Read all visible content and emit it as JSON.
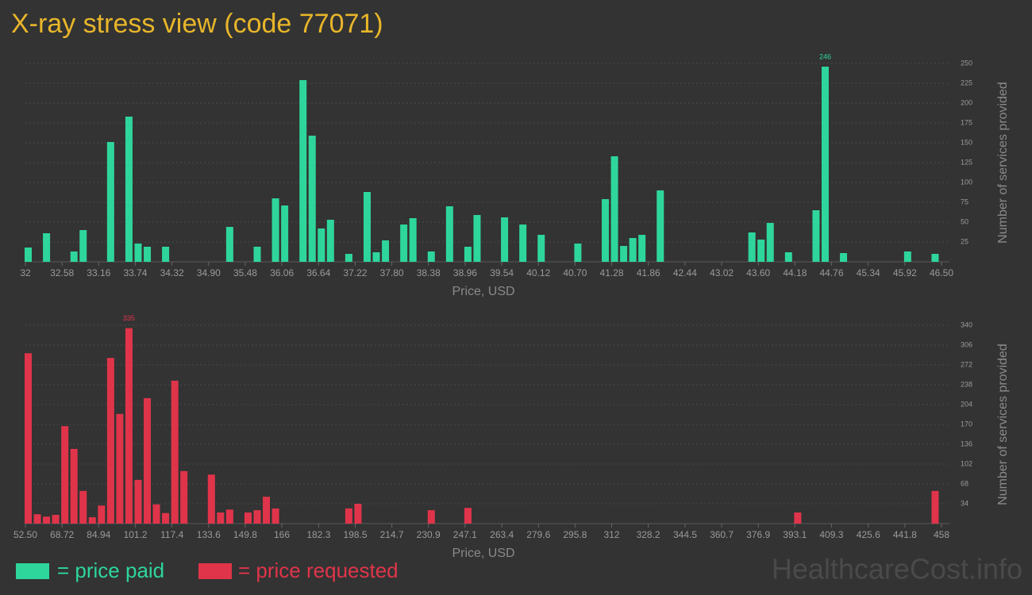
{
  "title": "X-ray stress view (code 77071)",
  "watermark": "HealthcareCost.info",
  "chart_data": [
    {
      "type": "bar",
      "x_label": "Price, USD",
      "y_label": "Number of services provided",
      "xlim": [
        32,
        46.5
      ],
      "xticks": [
        32,
        32.58,
        33.16,
        33.74,
        34.32,
        {
          "value": 34.9,
          "label": "34.90"
        },
        35.48,
        36.06,
        36.64,
        37.22,
        {
          "value": 37.8,
          "label": "37.80"
        },
        38.38,
        38.96,
        39.54,
        40.12,
        {
          "value": 40.7,
          "label": "40.70"
        },
        41.28,
        41.86,
        42.44,
        43.02,
        {
          "value": 43.6,
          "label": "43.60"
        },
        44.18,
        44.76,
        45.34,
        45.92,
        {
          "value": 46.5,
          "label": "46.50"
        }
      ],
      "ylim": [
        0,
        250
      ],
      "yticks": [
        25,
        50,
        75,
        100,
        125,
        150,
        175,
        200,
        225,
        250
      ],
      "series": [
        {
          "name": "= price paid",
          "color": "#2ed69c",
          "x": [
            32,
            32.29,
            32.725,
            32.87,
            33.305,
            33.595,
            33.74,
            33.885,
            34.175,
            35.19,
            35.625,
            35.915,
            36.06,
            36.35,
            36.495,
            36.64,
            36.785,
            37.075,
            37.365,
            37.51,
            37.655,
            37.945,
            38.09,
            38.38,
            38.67,
            38.96,
            39.105,
            39.54,
            39.83,
            40.12,
            40.7,
            41.135,
            41.28,
            41.425,
            41.57,
            41.715,
            42.005,
            43.455,
            43.6,
            43.745,
            44.035,
            44.47,
            44.615,
            44.905,
            45.92,
            46.355
          ],
          "values": [
            18,
            36,
            13,
            40,
            151,
            183,
            23,
            19,
            19,
            44,
            19,
            80,
            71,
            229,
            159,
            42,
            53,
            10,
            88,
            12,
            27,
            47,
            55,
            13,
            70,
            19,
            59,
            56,
            47,
            34,
            23,
            79,
            133,
            20,
            30,
            34,
            90,
            37,
            28,
            49,
            12,
            65,
            246,
            11,
            13,
            10
          ]
        }
      ]
    },
    {
      "type": "bar",
      "x_label": "Price, USD",
      "y_label": "Number of services provided",
      "xlim": [
        52.5,
        458
      ],
      "xticks": [
        {
          "value": 52.5,
          "label": "52.50"
        },
        68.72,
        84.94,
        101.2,
        117.4,
        133.6,
        149.8,
        166,
        182.3,
        198.5,
        214.7,
        230.9,
        247.1,
        263.4,
        279.6,
        295.8,
        312,
        328.2,
        344.5,
        360.7,
        376.9,
        393.1,
        409.3,
        425.6,
        441.8,
        458
      ],
      "ylim": [
        0,
        340
      ],
      "yticks": [
        34,
        68,
        102,
        136,
        170,
        204,
        238,
        272,
        306,
        340
      ],
      "series": [
        {
          "name": "= price requested",
          "color": "#e0344a",
          "x": [
            52.5,
            56.555,
            60.61,
            64.665,
            68.72,
            72.775,
            76.83,
            80.885,
            84.94,
            88.995,
            93.05,
            97.105,
            101.16,
            105.215,
            109.27,
            113.325,
            117.38,
            121.435,
            133.6,
            137.655,
            141.71,
            149.82,
            153.875,
            157.93,
            161.985,
            194.425,
            198.48,
            230.92,
            247.14,
            393.12,
            453.945
          ],
          "values": [
            292,
            16,
            12,
            15,
            167,
            128,
            56,
            11,
            31,
            284,
            188,
            335,
            75,
            215,
            33,
            18,
            245,
            90,
            84,
            19,
            24,
            19,
            23,
            46,
            26,
            26,
            34,
            23,
            27,
            19,
            56
          ]
        }
      ]
    }
  ]
}
